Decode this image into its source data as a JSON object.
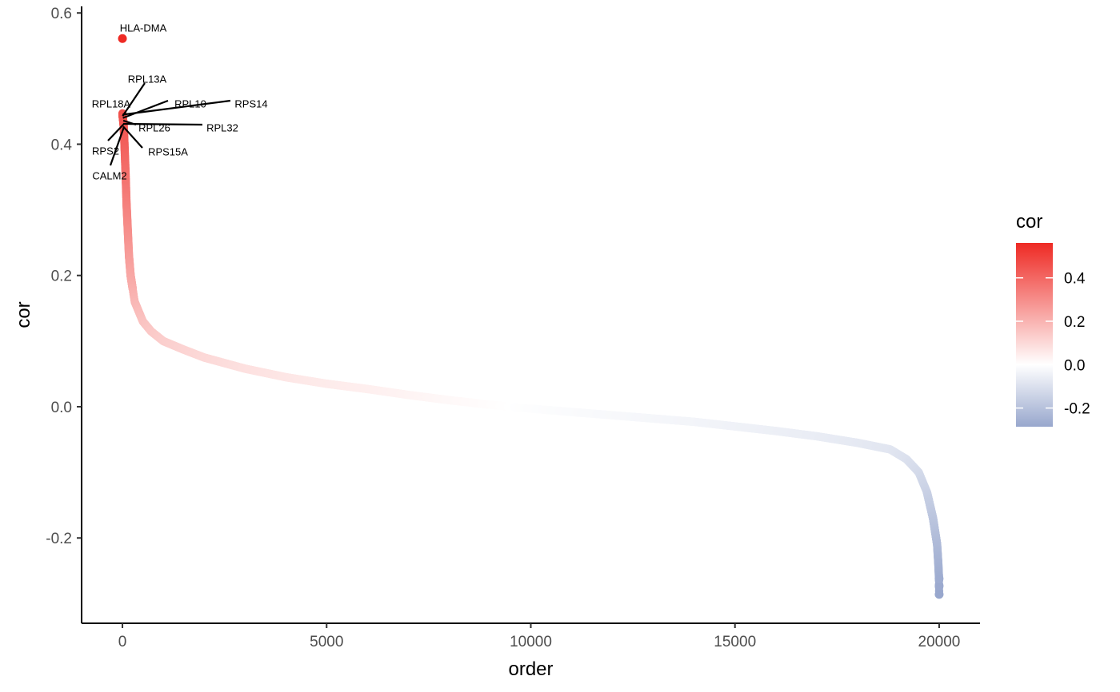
{
  "chart_data": {
    "type": "scatter",
    "xlabel": "order",
    "ylabel": "cor",
    "xlim": [
      -1000,
      21000
    ],
    "ylim": [
      -0.33,
      0.61
    ],
    "x_ticks": [
      0,
      5000,
      10000,
      15000,
      20000
    ],
    "y_ticks": [
      -0.2,
      0.0,
      0.2,
      0.4,
      0.6
    ],
    "x_tick_labels": [
      "0",
      "5000",
      "10000",
      "15000",
      "20000"
    ],
    "y_tick_labels": [
      "-0.2",
      "0.0",
      "0.2",
      "0.4",
      "0.6"
    ],
    "grid": false,
    "series": [
      {
        "curve_points": [
          [
            0,
            0.561
          ],
          [
            1,
            0.447
          ],
          [
            3,
            0.445
          ],
          [
            5,
            0.443
          ],
          [
            10,
            0.44
          ],
          [
            20,
            0.435
          ],
          [
            30,
            0.428
          ],
          [
            50,
            0.4
          ],
          [
            80,
            0.35
          ],
          [
            100,
            0.31
          ],
          [
            130,
            0.27
          ],
          [
            160,
            0.23
          ],
          [
            200,
            0.2
          ],
          [
            300,
            0.16
          ],
          [
            500,
            0.13
          ],
          [
            700,
            0.115
          ],
          [
            1000,
            0.1
          ],
          [
            1500,
            0.087
          ],
          [
            2000,
            0.075
          ],
          [
            3000,
            0.058
          ],
          [
            4000,
            0.045
          ],
          [
            5000,
            0.035
          ],
          [
            6000,
            0.027
          ],
          [
            7000,
            0.018
          ],
          [
            8000,
            0.01
          ],
          [
            9000,
            0.003
          ],
          [
            10000,
            -0.003
          ],
          [
            11000,
            -0.008
          ],
          [
            12000,
            -0.013
          ],
          [
            13000,
            -0.018
          ],
          [
            14000,
            -0.023
          ],
          [
            15000,
            -0.03
          ],
          [
            16000,
            -0.037
          ],
          [
            17000,
            -0.045
          ],
          [
            18000,
            -0.055
          ],
          [
            18800,
            -0.065
          ],
          [
            19200,
            -0.08
          ],
          [
            19500,
            -0.1
          ],
          [
            19700,
            -0.13
          ],
          [
            19850,
            -0.17
          ],
          [
            19950,
            -0.21
          ],
          [
            19980,
            -0.24
          ],
          [
            19995,
            -0.26
          ],
          [
            20000,
            -0.286
          ]
        ]
      }
    ],
    "annotations": [
      {
        "label": "HLA-DMA",
        "x": 0,
        "y": 0.561
      },
      {
        "label": "RPL13A",
        "x": 5,
        "y": 0.443
      },
      {
        "label": "RPL18A",
        "x": 1,
        "y": 0.447
      },
      {
        "label": "RPL10",
        "x": 10,
        "y": 0.44
      },
      {
        "label": "RPS14",
        "x": 3,
        "y": 0.445
      },
      {
        "label": "RPL26",
        "x": 20,
        "y": 0.436
      },
      {
        "label": "RPL32",
        "x": 15,
        "y": 0.431
      },
      {
        "label": "RPS2",
        "x": 25,
        "y": 0.43
      },
      {
        "label": "RPS15A",
        "x": 18,
        "y": 0.427
      },
      {
        "label": "CALM2",
        "x": 30,
        "y": 0.425
      }
    ],
    "legend": {
      "title": "cor",
      "placement": "right",
      "range": [
        -0.286,
        0.561
      ],
      "ticks": [
        0.4,
        0.2,
        0.0,
        -0.2
      ],
      "tick_labels": [
        "0.4",
        "0.2",
        "0.0",
        "-0.2"
      ],
      "colors": {
        "high": "#ee2a24",
        "mid": "#ffffff",
        "low": "#98a7cd"
      }
    }
  }
}
